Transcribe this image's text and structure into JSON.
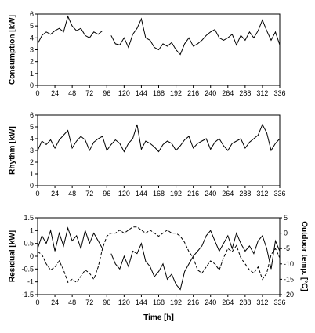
{
  "chart_data": [
    {
      "type": "line",
      "y_label": "Consumption [kW]",
      "xlim": [
        0,
        336
      ],
      "xticks": [
        0,
        24,
        48,
        72,
        96,
        120,
        144,
        168,
        192,
        216,
        240,
        264,
        288,
        312,
        336
      ],
      "ylim": [
        0,
        6
      ],
      "yticks": [
        0,
        1,
        2,
        3,
        4,
        5,
        6
      ],
      "x": [
        0,
        6,
        12,
        18,
        24,
        30,
        36,
        42,
        48,
        54,
        60,
        66,
        72,
        78,
        84,
        90,
        96,
        102,
        108,
        114,
        120,
        126,
        132,
        138,
        144,
        150,
        156,
        162,
        168,
        174,
        180,
        186,
        192,
        198,
        204,
        210,
        216,
        222,
        228,
        234,
        240,
        246,
        252,
        258,
        264,
        270,
        276,
        282,
        288,
        294,
        300,
        306,
        312,
        318,
        324,
        330,
        336
      ],
      "series": [
        {
          "color": "#000000",
          "values": [
            3.5,
            4.2,
            4.5,
            4.3,
            4.6,
            4.8,
            4.5,
            5.8,
            5.0,
            4.6,
            4.8,
            4.2,
            4.0,
            4.5,
            4.3,
            4.6,
            null,
            4.2,
            3.5,
            3.4,
            4.0,
            3.2,
            4.3,
            4.8,
            5.6,
            4.0,
            3.8,
            3.2,
            3.0,
            3.5,
            3.3,
            3.6,
            3.0,
            2.6,
            3.5,
            4.0,
            3.3,
            3.5,
            3.8,
            4.2,
            4.5,
            4.7,
            4.0,
            3.8,
            4.0,
            4.3,
            3.4,
            4.2,
            3.8,
            4.5,
            4.0,
            4.6,
            5.5,
            4.6,
            3.8,
            4.5,
            3.4
          ]
        }
      ]
    },
    {
      "type": "line",
      "y_label": "Rhythm [kW]",
      "xlim": [
        0,
        336
      ],
      "xticks": [
        0,
        24,
        48,
        72,
        96,
        120,
        144,
        168,
        192,
        216,
        240,
        264,
        288,
        312,
        336
      ],
      "ylim": [
        0,
        6
      ],
      "yticks": [
        0,
        1,
        2,
        3,
        4,
        5,
        6
      ],
      "x": [
        0,
        6,
        12,
        18,
        24,
        30,
        36,
        42,
        48,
        54,
        60,
        66,
        72,
        78,
        84,
        90,
        96,
        102,
        108,
        114,
        120,
        126,
        132,
        138,
        144,
        150,
        156,
        162,
        168,
        174,
        180,
        186,
        192,
        198,
        204,
        210,
        216,
        222,
        228,
        234,
        240,
        246,
        252,
        258,
        264,
        270,
        276,
        282,
        288,
        294,
        300,
        306,
        312,
        318,
        324,
        330,
        336
      ],
      "series": [
        {
          "color": "#000000",
          "values": [
            3.0,
            3.8,
            3.5,
            3.9,
            3.2,
            3.9,
            4.3,
            4.7,
            3.2,
            3.8,
            4.2,
            3.9,
            3.0,
            3.7,
            4.0,
            4.2,
            3.0,
            3.5,
            3.9,
            3.6,
            2.9,
            3.6,
            4.0,
            5.2,
            3.1,
            3.8,
            3.6,
            3.3,
            2.9,
            3.5,
            3.8,
            3.6,
            3.0,
            3.4,
            3.9,
            4.2,
            3.2,
            3.6,
            3.8,
            4.0,
            3.1,
            3.7,
            4.0,
            3.4,
            3.0,
            3.6,
            3.8,
            4.0,
            3.2,
            3.7,
            4.0,
            4.3,
            5.2,
            4.5,
            3.0,
            3.6,
            4.0
          ]
        }
      ]
    },
    {
      "type": "line",
      "y_label": "Residual [kW]",
      "y2_label": "Outdoor temp. [°C]",
      "x_label": "Time [h]",
      "xlim": [
        0,
        336
      ],
      "xticks": [
        0,
        24,
        48,
        72,
        96,
        120,
        144,
        168,
        192,
        216,
        240,
        264,
        288,
        312,
        336
      ],
      "ylim": [
        -1.5,
        1.5
      ],
      "yticks": [
        -1.5,
        -1,
        -0.5,
        0,
        0.5,
        1,
        1.5
      ],
      "y2lim": [
        -20,
        5
      ],
      "y2ticks": [
        -20,
        -15,
        -10,
        -5,
        0,
        5
      ],
      "x": [
        0,
        6,
        12,
        18,
        24,
        30,
        36,
        42,
        48,
        54,
        60,
        66,
        72,
        78,
        84,
        90,
        96,
        102,
        108,
        114,
        120,
        126,
        132,
        138,
        144,
        150,
        156,
        162,
        168,
        174,
        180,
        186,
        192,
        198,
        204,
        210,
        216,
        222,
        228,
        234,
        240,
        246,
        252,
        258,
        264,
        270,
        276,
        282,
        288,
        294,
        300,
        306,
        312,
        318,
        324,
        330,
        336
      ],
      "series": [
        {
          "color": "#000000",
          "values": [
            0.3,
            0.8,
            0.5,
            1.0,
            0.2,
            0.9,
            0.4,
            1.1,
            0.6,
            0.8,
            0.3,
            1.0,
            0.5,
            0.9,
            0.6,
            0.3,
            null,
            0.1,
            -0.3,
            -0.5,
            0.0,
            -0.4,
            0.2,
            0.1,
            0.5,
            -0.2,
            -0.4,
            -0.8,
            -0.6,
            -0.3,
            -0.9,
            -0.7,
            -1.1,
            -1.3,
            -0.6,
            -0.3,
            0.0,
            0.2,
            0.4,
            0.8,
            1.0,
            0.6,
            0.2,
            0.5,
            0.8,
            0.3,
            0.9,
            0.5,
            0.2,
            0.4,
            0.1,
            0.6,
            0.8,
            0.3,
            -0.5,
            0.6,
            0.2
          ]
        },
        {
          "color": "#000000",
          "style": "dashed",
          "axis": "y2",
          "values": [
            -6,
            -7,
            -10,
            -12,
            -11,
            -9,
            -12,
            -16,
            -15,
            -16,
            -14,
            -12,
            -13,
            -15,
            -11,
            -5,
            -1,
            0,
            0,
            1,
            0,
            1,
            2,
            2,
            1,
            0,
            1,
            0,
            -1,
            0,
            1,
            0,
            0,
            -1,
            -3,
            -6,
            -8,
            -12,
            -13,
            -11,
            -9,
            -10,
            -12,
            -8,
            -5,
            -6,
            -4,
            -8,
            -10,
            -12,
            -13,
            -11,
            -15,
            -13,
            -7,
            -5,
            -8
          ]
        }
      ]
    }
  ]
}
